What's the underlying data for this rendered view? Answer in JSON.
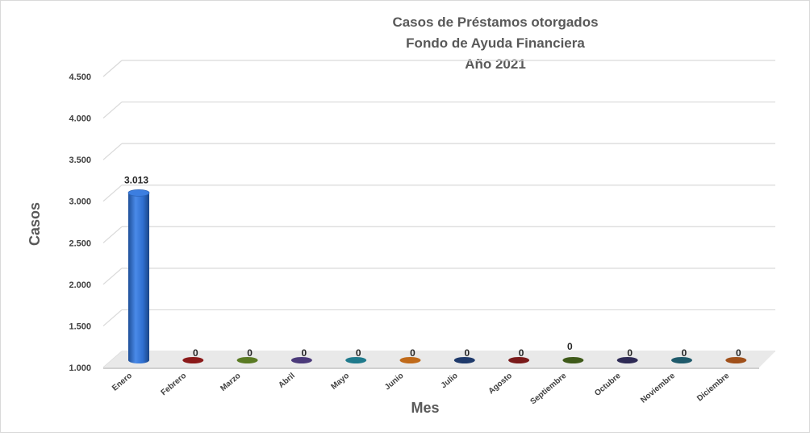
{
  "chart_data": {
    "type": "bar",
    "title_lines": [
      "Casos de Préstamos otorgados",
      "Fondo de Ayuda Financiera",
      "Año 2021"
    ],
    "xlabel": "Mes",
    "ylabel": "Casos",
    "categories": [
      "Enero",
      "Febrero",
      "Marzo",
      "Abril",
      "Mayo",
      "Junio",
      "Julio",
      "Agosto",
      "Septiembre",
      "Octubre",
      "Noviembre",
      "Diciembre"
    ],
    "values": [
      3013,
      0,
      0,
      0,
      0,
      0,
      0,
      0,
      0,
      0,
      0,
      0
    ],
    "data_labels": [
      "3.013",
      "0",
      "0",
      "0",
      "0",
      "0",
      "0",
      "0",
      "0",
      "0",
      "0",
      "0"
    ],
    "ylim": [
      1000,
      4500
    ],
    "yticks": [
      "1.000",
      "1.500",
      "2.000",
      "2.500",
      "3.000",
      "3.500",
      "4.000",
      "4.500"
    ],
    "ytick_values": [
      1000,
      1500,
      2000,
      2500,
      3000,
      3500,
      4000,
      4500
    ],
    "grid": true,
    "colors": [
      "#2e6fd0",
      "#8b1a1a",
      "#5a7a23",
      "#4b3a7a",
      "#1f7a8c",
      "#c06a1a",
      "#1f3a6b",
      "#7a1a1a",
      "#3f5a1a",
      "#2e2a55",
      "#1f5a6b",
      "#a0501a"
    ]
  }
}
